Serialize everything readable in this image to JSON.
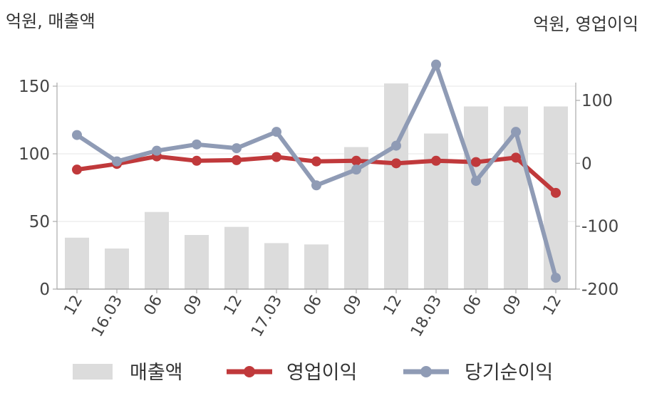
{
  "chart_data": {
    "type": "bar+line",
    "left_axis_title": "억원, 매출액",
    "right_axis_title": "억원, 영업이익",
    "categories": [
      "12",
      "16.03",
      "06",
      "09",
      "12",
      "17.03",
      "06",
      "09",
      "12",
      "18.03",
      "06",
      "09",
      "12"
    ],
    "left_ylim": [
      0,
      150
    ],
    "left_ticks": [
      0,
      50,
      100,
      150
    ],
    "right_ylim": [
      -200,
      100
    ],
    "right_ticks": [
      -200,
      -100,
      0,
      100
    ],
    "bars": {
      "name": "매출액",
      "color": "#dcdcdc",
      "axis": "left",
      "values": [
        38,
        30,
        57,
        40,
        46,
        34,
        33,
        105,
        152,
        115,
        135,
        135,
        135
      ]
    },
    "series": [
      {
        "name": "영업이익",
        "color": "#c0393b",
        "axis": "right",
        "values": [
          -10,
          -1,
          11,
          4,
          5,
          10,
          3,
          4,
          0,
          4,
          2,
          9,
          -47
        ]
      },
      {
        "name": "당기순이익",
        "color": "#8f9bb5",
        "axis": "right",
        "values": [
          45,
          3,
          20,
          30,
          24,
          50,
          -35,
          -10,
          28,
          157,
          -28,
          50,
          -182
        ]
      }
    ],
    "grid": true,
    "legend_position": "bottom"
  }
}
